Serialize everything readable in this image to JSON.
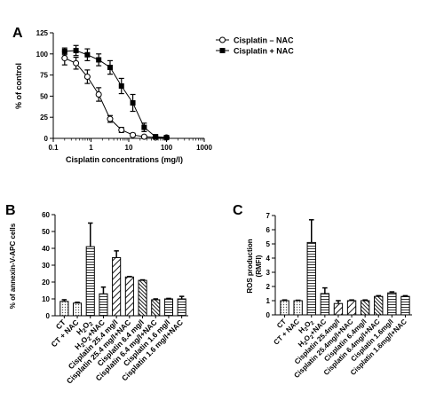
{
  "panels": [
    {
      "letter": "A"
    },
    {
      "letter": "B"
    },
    {
      "letter": "C"
    }
  ],
  "chart_data": [
    {
      "type": "line",
      "panel": "A",
      "xlabel": "Cisplatin concentrations (mg/l)",
      "ylabel": "% of control",
      "x_scale": "log",
      "xlim": [
        0.1,
        1000
      ],
      "ylim": [
        0,
        125
      ],
      "x_ticks": [
        0.1,
        1,
        10,
        100,
        1000
      ],
      "x_tick_labels": [
        "0.1",
        "1",
        "10",
        "100",
        "1000"
      ],
      "y_ticks": [
        0,
        25,
        50,
        75,
        100,
        125
      ],
      "grid": false,
      "legend": "top-right",
      "series": [
        {
          "name": "Cisplatin – NAC",
          "marker": "open-circle",
          "x": [
            0.2,
            0.4,
            0.8,
            1.6,
            3.2,
            6.4,
            12.8,
            25.6,
            51.2,
            100
          ],
          "y": [
            95,
            89,
            73,
            52,
            23,
            10,
            4,
            2,
            1,
            1
          ],
          "err": [
            8,
            7,
            8,
            8,
            4,
            3,
            2,
            1,
            1,
            1
          ]
        },
        {
          "name": "Cisplatin + NAC",
          "marker": "filled-square",
          "x": [
            0.2,
            0.4,
            0.8,
            1.6,
            3.2,
            6.4,
            12.8,
            25.6,
            51.2,
            100
          ],
          "y": [
            103,
            104,
            99,
            93,
            84,
            62,
            42,
            13,
            2,
            1
          ],
          "err": [
            4,
            6,
            7,
            7,
            8,
            9,
            10,
            5,
            2,
            1
          ]
        }
      ]
    },
    {
      "type": "bar",
      "panel": "B",
      "ylabel": "% of annexin-V-APC cells",
      "ylim": [
        0,
        60
      ],
      "y_ticks": [
        0,
        10,
        20,
        30,
        40,
        50,
        60
      ],
      "grid": false,
      "categories": [
        "CT",
        "CT + NAC",
        "H2O2",
        "H2O2+NAC",
        "Cisplatin 25.4 mg/l",
        "Cisplatin 25.4 mg/l+NAC",
        "Cisplatin 6.4 mg/l",
        "Cisplatin 6.4 mg/l+NAC",
        "Cisplatin 1.6 mg/l",
        "Cisplatin 1.6 mg/l+NAC"
      ],
      "values": [
        8.5,
        7.5,
        41,
        13,
        34.5,
        23,
        21,
        9.5,
        10,
        10
      ],
      "errors": [
        1,
        0.5,
        14,
        4,
        4,
        0.3,
        0.3,
        0.5,
        0.3,
        1.5
      ],
      "patterns": [
        "dots",
        "dots",
        "hlines",
        "hlines",
        "diag-back",
        "diag-back",
        "dense-diag",
        "dense-diag",
        "hlines",
        "hlines"
      ]
    },
    {
      "type": "bar",
      "panel": "C",
      "ylabel": "ROS production\n(RMFI)",
      "ylim": [
        0,
        7
      ],
      "y_ticks": [
        0,
        1,
        2,
        3,
        4,
        5,
        6,
        7
      ],
      "grid": false,
      "categories": [
        "CT",
        "CT + NAC",
        "H2O2",
        "H2O2+NAC",
        "Cisplatin 25.4mg/l",
        "Cisplatin 25.4mg/l+NAC",
        "Cisplatin 6.4mg/l",
        "Cisplatin 6.4mg/l+NAC",
        "Cisplatin 1.6mg/l",
        "Cisplatin 1.6mg/l+NAC"
      ],
      "values": [
        1.0,
        1.0,
        5.1,
        1.5,
        0.8,
        1.0,
        1.0,
        1.3,
        1.55,
        1.3
      ],
      "errors": [
        0.05,
        0.03,
        1.6,
        0.4,
        0.2,
        0.05,
        0.05,
        0.05,
        0.07,
        0.05
      ],
      "patterns": [
        "dots",
        "dots",
        "hlines",
        "hlines",
        "diag-back",
        "diag-back",
        "dense-diag",
        "dense-diag",
        "hlines",
        "hlines"
      ]
    }
  ]
}
